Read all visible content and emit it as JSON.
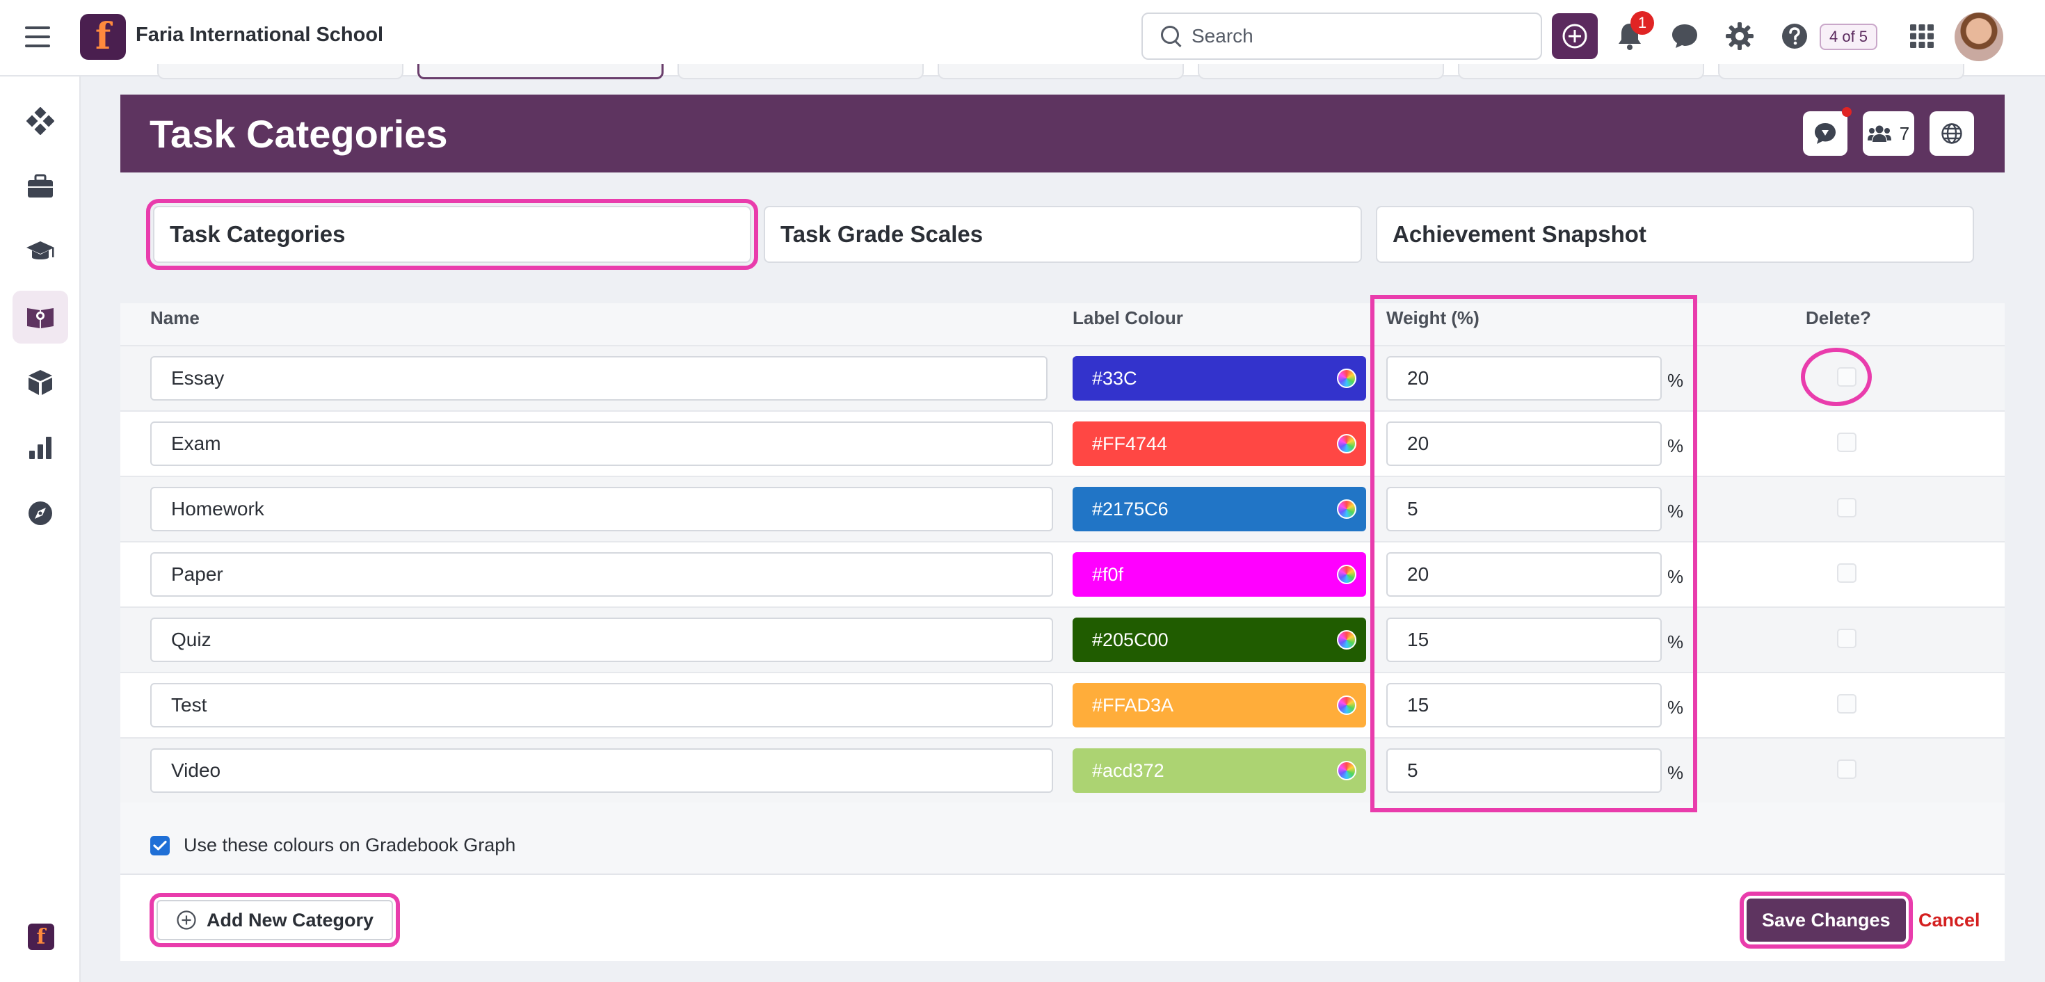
{
  "app": {
    "school_name": "Faria International School",
    "logo_letter": "f"
  },
  "topbar": {
    "search_placeholder": "Search",
    "notification_count": "1",
    "page_counter": "4 of 5"
  },
  "page": {
    "title": "Task Categories",
    "members_count": "7",
    "tabs": [
      {
        "label": "Task Categories",
        "active": true
      },
      {
        "label": "Task Grade Scales",
        "active": false
      },
      {
        "label": "Achievement Snapshot",
        "active": false
      }
    ]
  },
  "table": {
    "headers": {
      "name": "Name",
      "label_colour": "Label Colour",
      "weight": "Weight (%)",
      "delete": "Delete?"
    },
    "percent_symbol": "%",
    "rows": [
      {
        "name": "Essay",
        "colour": "#33C",
        "weight": "20",
        "delete": false
      },
      {
        "name": "Exam",
        "colour": "#FF4744",
        "weight": "20",
        "delete": false
      },
      {
        "name": "Homework",
        "colour": "#2175C6",
        "weight": "5",
        "delete": false
      },
      {
        "name": "Paper",
        "colour": "#f0f",
        "weight": "20",
        "delete": false
      },
      {
        "name": "Quiz",
        "colour": "#205C00",
        "weight": "15",
        "delete": false
      },
      {
        "name": "Test",
        "colour": "#FFAD3A",
        "weight": "15",
        "delete": false
      },
      {
        "name": "Video",
        "colour": "#acd372",
        "weight": "5",
        "delete": false
      }
    ]
  },
  "options": {
    "use_colours_label": "Use these colours on Gradebook Graph",
    "use_colours_checked": true
  },
  "footer": {
    "add_label": "Add New Category",
    "save_label": "Save Changes",
    "cancel_label": "Cancel"
  },
  "colors": {
    "brand": "#5e3460",
    "highlight": "#e93cac",
    "danger": "#d42020"
  }
}
